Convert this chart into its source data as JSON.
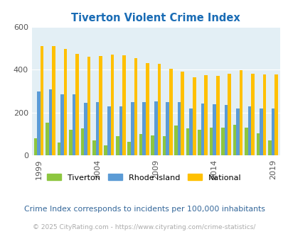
{
  "title": "Tiverton Violent Crime Index",
  "subtitle": "Crime Index corresponds to incidents per 100,000 inhabitants",
  "footer": "© 2025 CityRating.com - https://www.cityrating.com/crime-statistics/",
  "years": [
    1999,
    2000,
    2001,
    2002,
    2003,
    2004,
    2005,
    2006,
    2007,
    2008,
    2009,
    2010,
    2011,
    2012,
    2013,
    2014,
    2015,
    2016,
    2017,
    2018,
    2019
  ],
  "tiverton": [
    80,
    155,
    60,
    120,
    128,
    70,
    48,
    90,
    65,
    100,
    95,
    90,
    140,
    128,
    120,
    130,
    130,
    145,
    130,
    105,
    70
  ],
  "rhode_island": [
    300,
    310,
    285,
    285,
    245,
    248,
    230,
    228,
    250,
    250,
    253,
    248,
    250,
    220,
    243,
    238,
    235,
    220,
    230,
    220,
    220
  ],
  "national": [
    510,
    510,
    498,
    473,
    460,
    463,
    470,
    468,
    455,
    430,
    428,
    405,
    390,
    365,
    375,
    373,
    383,
    398,
    383,
    380,
    378
  ],
  "tiverton_color": "#8dc63f",
  "rhode_island_color": "#5b9bd5",
  "national_color": "#ffc000",
  "bg_color": "#ffffff",
  "plot_bg_color": "#e3eff5",
  "ylim": [
    0,
    600
  ],
  "yticks": [
    0,
    200,
    400,
    600
  ],
  "xlabel_ticks": [
    1999,
    2004,
    2009,
    2014,
    2019
  ],
  "title_color": "#1a6cb5",
  "subtitle_color": "#336699",
  "footer_color": "#aaaaaa"
}
